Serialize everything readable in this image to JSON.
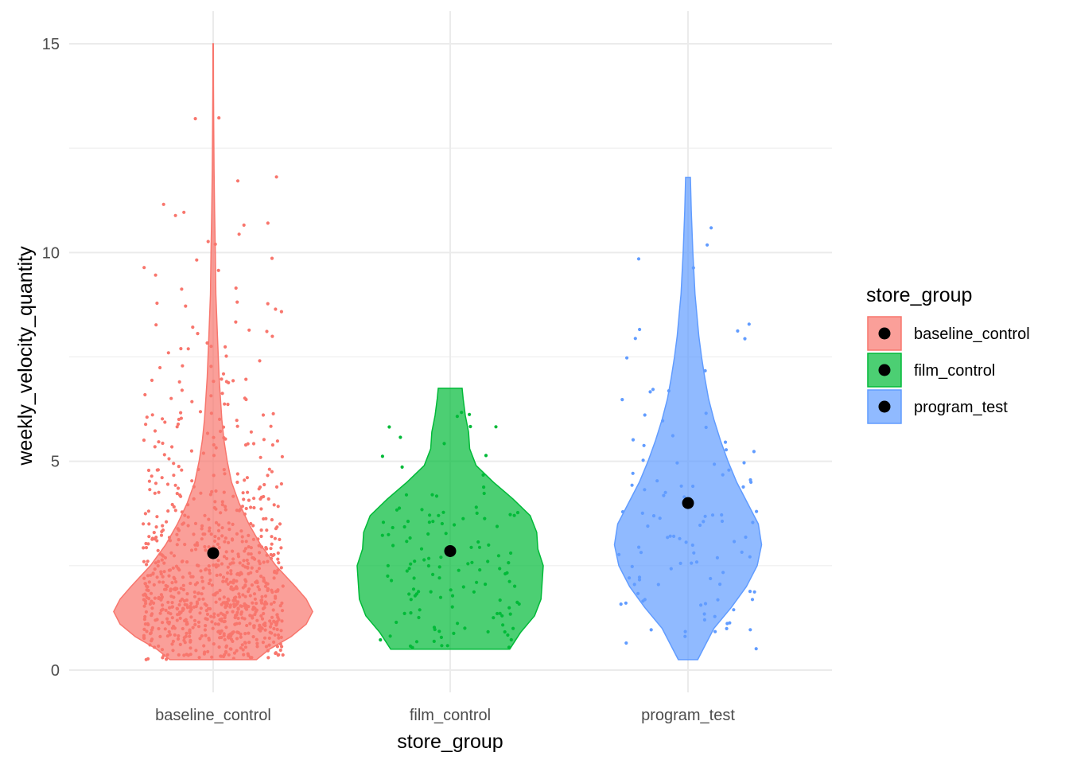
{
  "chart_data": {
    "type": "violin",
    "xlabel": "store_group",
    "ylabel": "weekly_velocity_quantity",
    "ylim": [
      -0.9,
      15.4
    ],
    "y_ticks": [
      0,
      5,
      10,
      15
    ],
    "categories": [
      "baseline_control",
      "film_control",
      "program_test"
    ],
    "legend": {
      "title": "store_group",
      "position": "right",
      "entries": [
        "baseline_control",
        "film_control",
        "program_test"
      ]
    },
    "grid": true,
    "colors": {
      "baseline_control": "#F8766D",
      "film_control": "#00BA38",
      "program_test": "#619CFF",
      "mean_point": "#000000"
    },
    "series": [
      {
        "name": "baseline_control",
        "min": 0.25,
        "max": 15.0,
        "mean": 2.8,
        "n_points": 900,
        "density": [
          [
            0.25,
            0.4
          ],
          [
            0.5,
            0.52
          ],
          [
            0.8,
            0.72
          ],
          [
            1.1,
            0.86
          ],
          [
            1.4,
            0.92
          ],
          [
            1.7,
            0.86
          ],
          [
            2.0,
            0.76
          ],
          [
            2.5,
            0.58
          ],
          [
            3.0,
            0.44
          ],
          [
            3.5,
            0.33
          ],
          [
            4.0,
            0.24
          ],
          [
            4.5,
            0.17
          ],
          [
            5.0,
            0.13
          ],
          [
            5.5,
            0.1
          ],
          [
            6.0,
            0.08
          ],
          [
            7.0,
            0.055
          ],
          [
            8.0,
            0.04
          ],
          [
            9.0,
            0.025
          ],
          [
            10.0,
            0.02
          ],
          [
            11.0,
            0.013
          ],
          [
            12.0,
            0.008
          ],
          [
            13.0,
            0.005
          ],
          [
            14.0,
            0.003
          ],
          [
            15.0,
            0.002
          ]
        ]
      },
      {
        "name": "film_control",
        "min": 0.5,
        "max": 6.75,
        "mean": 2.85,
        "n_points": 130,
        "density": [
          [
            0.5,
            0.55
          ],
          [
            0.9,
            0.65
          ],
          [
            1.3,
            0.78
          ],
          [
            1.7,
            0.84
          ],
          [
            2.1,
            0.85
          ],
          [
            2.5,
            0.86
          ],
          [
            2.9,
            0.81
          ],
          [
            3.3,
            0.8
          ],
          [
            3.7,
            0.74
          ],
          [
            4.1,
            0.58
          ],
          [
            4.5,
            0.4
          ],
          [
            4.9,
            0.24
          ],
          [
            5.3,
            0.18
          ],
          [
            5.7,
            0.17
          ],
          [
            6.1,
            0.14
          ],
          [
            6.5,
            0.12
          ],
          [
            6.75,
            0.11
          ]
        ]
      },
      {
        "name": "program_test",
        "min": 0.25,
        "max": 11.8,
        "mean": 4.0,
        "n_points": 110,
        "density": [
          [
            0.25,
            0.09
          ],
          [
            1.0,
            0.24
          ],
          [
            1.5,
            0.4
          ],
          [
            2.0,
            0.54
          ],
          [
            2.5,
            0.64
          ],
          [
            3.0,
            0.68
          ],
          [
            3.5,
            0.65
          ],
          [
            4.0,
            0.55
          ],
          [
            4.5,
            0.45
          ],
          [
            5.0,
            0.37
          ],
          [
            5.5,
            0.3
          ],
          [
            6.0,
            0.24
          ],
          [
            6.5,
            0.19
          ],
          [
            7.0,
            0.155
          ],
          [
            7.5,
            0.125
          ],
          [
            8.0,
            0.1
          ],
          [
            9.0,
            0.065
          ],
          [
            10.0,
            0.045
          ],
          [
            11.0,
            0.03
          ],
          [
            11.8,
            0.022
          ]
        ]
      }
    ]
  }
}
